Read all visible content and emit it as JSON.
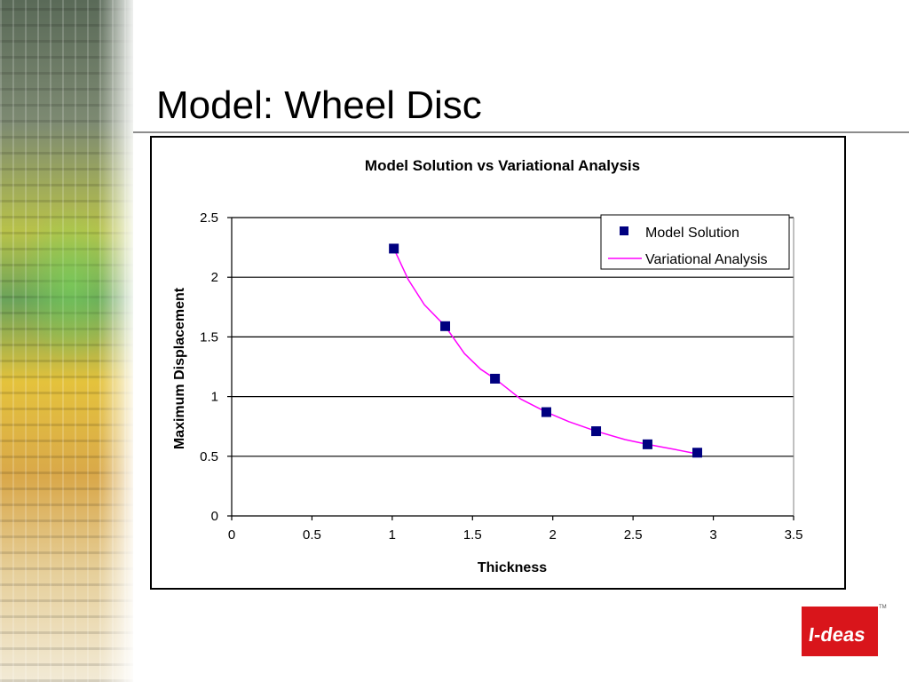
{
  "slide": {
    "title": "Model: Wheel Disc",
    "logo_text": "I-deas",
    "logo_tm": "TM"
  },
  "colors": {
    "marker": "#000080",
    "line": "#ff00ff",
    "logo_red": "#d9151b"
  },
  "chart_data": {
    "type": "scatter",
    "title": "Model Solution vs Variational Analysis",
    "xlabel": "Thickness",
    "ylabel": "Maximum Displacement",
    "xlim": [
      0,
      3.5
    ],
    "ylim": [
      0,
      2.5
    ],
    "x_ticks": [
      "0",
      "0.5",
      "1",
      "1.5",
      "2",
      "2.5",
      "3",
      "3.5"
    ],
    "y_ticks": [
      "0",
      "0.5",
      "1",
      "1.5",
      "2",
      "2.5"
    ],
    "grid": "horizontal",
    "legend_position": "top-right",
    "series": [
      {
        "name": "Model Solution",
        "kind": "markers",
        "x": [
          1.01,
          1.33,
          1.64,
          1.96,
          2.27,
          2.59,
          2.9
        ],
        "y": [
          2.24,
          1.59,
          1.15,
          0.87,
          0.71,
          0.6,
          0.53
        ]
      },
      {
        "name": "Variational Analysis",
        "kind": "line",
        "x": [
          1.01,
          1.1,
          1.2,
          1.33,
          1.45,
          1.55,
          1.64,
          1.8,
          1.96,
          2.1,
          2.27,
          2.45,
          2.59,
          2.75,
          2.9
        ],
        "y": [
          2.24,
          1.98,
          1.77,
          1.59,
          1.36,
          1.23,
          1.15,
          0.98,
          0.87,
          0.79,
          0.71,
          0.64,
          0.6,
          0.56,
          0.52
        ]
      }
    ]
  }
}
